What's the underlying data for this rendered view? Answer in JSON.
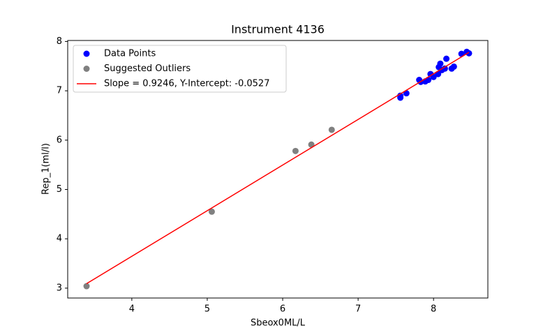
{
  "chart_data": {
    "type": "scatter",
    "title": "Instrument 4136",
    "xlabel": "Sbeox0ML/L",
    "ylabel": "Rep_1(ml/l)",
    "xlim": [
      3.15,
      8.72
    ],
    "ylim": [
      2.8,
      8.02
    ],
    "xticks": [
      4,
      5,
      6,
      7,
      8
    ],
    "yticks": [
      3,
      4,
      5,
      6,
      7,
      8
    ],
    "legend": "upper left",
    "series": [
      {
        "name": "Data Points",
        "kind": "points",
        "color": "#0000ff",
        "x": [
          7.56,
          7.56,
          7.64,
          7.81,
          7.83,
          7.89,
          7.93,
          7.96,
          8.0,
          8.06,
          8.07,
          8.09,
          8.11,
          8.15,
          8.17,
          8.24,
          8.27,
          8.37,
          8.44,
          8.47
        ],
        "values": [
          6.9,
          6.86,
          6.95,
          7.22,
          7.18,
          7.19,
          7.22,
          7.34,
          7.28,
          7.34,
          7.48,
          7.55,
          7.42,
          7.45,
          7.65,
          7.45,
          7.49,
          7.75,
          7.79,
          7.76
        ]
      },
      {
        "name": "Suggested Outliers",
        "kind": "points",
        "color": "#808080",
        "x": [
          3.4,
          5.06,
          6.17,
          6.38,
          6.65
        ],
        "values": [
          3.04,
          4.55,
          5.78,
          5.91,
          6.21
        ]
      },
      {
        "name": "Slope = 0.9246,  Y-Intercept: -0.0527",
        "kind": "line",
        "color": "#ff0000",
        "x": [
          3.4,
          8.47
        ],
        "values": [
          3.091,
          7.779
        ]
      }
    ]
  }
}
